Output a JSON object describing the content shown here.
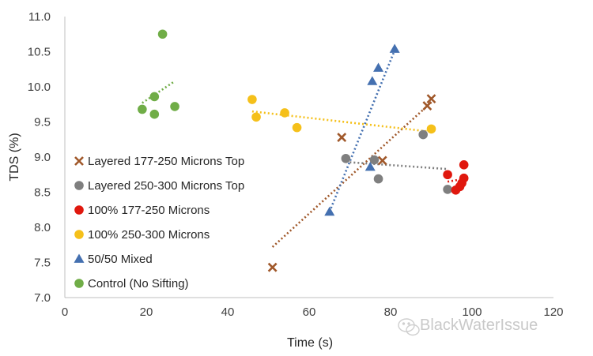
{
  "chart_data": {
    "type": "scatter",
    "xlabel": "Time (s)",
    "ylabel": "TDS (%)",
    "xlim": [
      0,
      120
    ],
    "ylim": [
      7.0,
      11.0
    ],
    "x_ticks": [
      "0",
      "20",
      "40",
      "60",
      "80",
      "100",
      "120"
    ],
    "y_ticks": [
      "7.0",
      "7.5",
      "8.0",
      "8.5",
      "9.0",
      "9.5",
      "10.0",
      "10.5",
      "11.0"
    ],
    "grid": false,
    "legend_position": "left",
    "trendlines": true,
    "series": [
      {
        "name": "Layered 177-250 Microns Top",
        "marker": "x",
        "color": "#a0582a",
        "x": [
          51,
          68,
          78,
          89,
          90
        ],
        "y": [
          7.43,
          9.28,
          8.95,
          9.73,
          9.83
        ],
        "trend": [
          [
            51,
            7.72
          ],
          [
            90,
            9.78
          ]
        ]
      },
      {
        "name": "Layered 250-300 Microns Top",
        "marker": "circle",
        "color": "#7f7f7f",
        "x": [
          69,
          76,
          77,
          88,
          94
        ],
        "y": [
          8.98,
          8.96,
          8.69,
          9.32,
          8.54
        ],
        "trend": [
          [
            69,
            8.93
          ],
          [
            94,
            8.83
          ]
        ]
      },
      {
        "name": "100% 177-250 Microns",
        "marker": "circle",
        "color": "#e0180e",
        "x": [
          94,
          96,
          97,
          97.5,
          98,
          98
        ],
        "y": [
          8.75,
          8.53,
          8.58,
          8.63,
          8.7,
          8.89
        ],
        "trend": [
          [
            94,
            8.65
          ],
          [
            98,
            8.69
          ]
        ]
      },
      {
        "name": "100% 250-300 Microns",
        "marker": "circle",
        "color": "#f5c01a",
        "x": [
          46,
          47,
          54,
          57,
          90
        ],
        "y": [
          9.82,
          9.57,
          9.63,
          9.42,
          9.4
        ],
        "trend": [
          [
            46,
            9.65
          ],
          [
            90,
            9.36
          ]
        ]
      },
      {
        "name": "50/50 Mixed",
        "marker": "triangle",
        "color": "#4470b0",
        "x": [
          65,
          75,
          75.5,
          77,
          81
        ],
        "y": [
          8.22,
          8.86,
          10.08,
          10.27,
          10.54
        ],
        "trend": [
          [
            65,
            8.22
          ],
          [
            81,
            10.52
          ]
        ]
      },
      {
        "name": "Control (No Sifting)",
        "marker": "circle",
        "color": "#70ad47",
        "x": [
          19,
          22,
          22,
          24,
          27
        ],
        "y": [
          9.68,
          9.86,
          9.61,
          10.75,
          9.72
        ],
        "trend": [
          [
            19,
            9.77
          ],
          [
            27,
            10.08
          ]
        ]
      }
    ]
  },
  "watermark": {
    "text": "BlackWaterIssue",
    "icon": "wechat-icon"
  }
}
